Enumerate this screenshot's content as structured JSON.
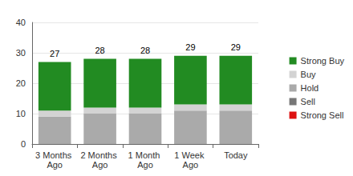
{
  "chart_data": {
    "type": "bar",
    "stacked": true,
    "grid": true,
    "legend": "right",
    "categories": [
      "3 Months Ago",
      "2 Months Ago",
      "1 Month Ago",
      "1 Week Ago",
      "Today"
    ],
    "series": [
      {
        "name": "Strong Sell",
        "color": "#dd1111",
        "values": [
          0,
          0,
          0,
          0,
          0
        ]
      },
      {
        "name": "Sell",
        "color": "#777777",
        "values": [
          0,
          0,
          0,
          0,
          0
        ]
      },
      {
        "name": "Hold",
        "color": "#aaaaaa",
        "values": [
          9,
          10,
          10,
          11,
          11
        ]
      },
      {
        "name": "Buy",
        "color": "#d3d3d3",
        "values": [
          2,
          2,
          2,
          2,
          2
        ]
      },
      {
        "name": "Strong Buy",
        "color": "#228b22",
        "values": [
          16,
          16,
          16,
          16,
          16
        ]
      }
    ],
    "totals": [
      27,
      28,
      28,
      29,
      29
    ],
    "ylim": [
      0,
      40
    ],
    "yticks": [
      0,
      10,
      20,
      30,
      40
    ]
  }
}
